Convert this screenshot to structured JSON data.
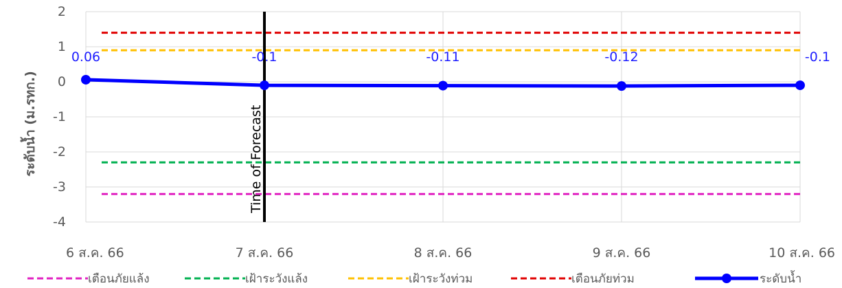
{
  "chart_data": {
    "type": "line",
    "title": "",
    "xlabel": "",
    "ylabel": "ระดับน้ำ (ม.รทก.)",
    "ylim": [
      -4,
      2
    ],
    "yticks": [
      "2",
      "1",
      "0",
      "-1",
      "-2",
      "-3",
      "-4"
    ],
    "categories": [
      "6 ส.ค. 66",
      "7 ส.ค. 66",
      "8 ส.ค. 66",
      "9 ส.ค. 66",
      "10 ส.ค. 66"
    ],
    "grid": true,
    "legend_position": "bottom",
    "series": [
      {
        "name": "ระดับน้ำ",
        "values": [
          0.06,
          -0.1,
          -0.11,
          -0.12,
          -0.1
        ],
        "labels": [
          "0.06",
          "-0.1",
          "-0.11",
          "-0.12",
          "-0.1"
        ],
        "color": "#0000ff",
        "style": "solid-markers"
      }
    ],
    "thresholds": [
      {
        "name": "เตือนภัยแล้ง",
        "value": -3.2,
        "color": "#e020c0",
        "style": "dashed"
      },
      {
        "name": "เฝ้าระวังแล้ง",
        "value": -2.3,
        "color": "#00b050",
        "style": "dashed"
      },
      {
        "name": "เฝ้าระวังท่วม",
        "value": 0.9,
        "color": "#ffc000",
        "style": "dashed"
      },
      {
        "name": "เตือนภัยท่วม",
        "value": 1.4,
        "color": "#e00000",
        "style": "dashed"
      }
    ],
    "annotations": [
      {
        "text": "Time of Forecast",
        "x_category_index": 1,
        "color": "#000000"
      }
    ]
  }
}
